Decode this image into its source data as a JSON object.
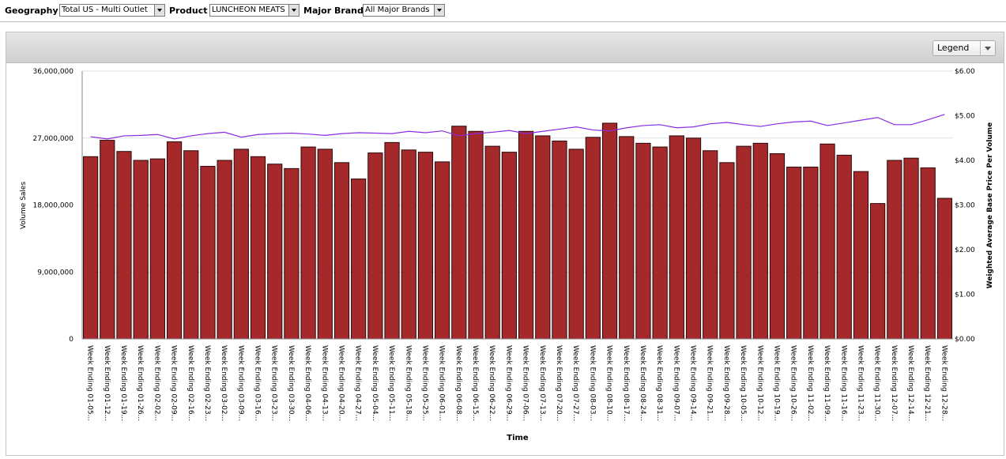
{
  "filters": {
    "geography_label": "Geography",
    "geography_value": "Total US - Multi Outlet",
    "product_label": "Product",
    "product_value": "LUNCHEON MEATS",
    "brand_label": "Major Brand",
    "brand_value": "All Major Brands"
  },
  "panel": {
    "legend_label": "Legend"
  },
  "colors": {
    "bar": "#a5292a",
    "bar_stroke": "#2a0a0a",
    "line": "#8a2be2",
    "grid": "#dde3ea"
  },
  "chart_data": {
    "type": "bar",
    "title": "",
    "xlabel": "Time",
    "ylabel": "Volume Sales",
    "y2label": "Weighted Average Base Price Per Volume",
    "ylim": [
      0,
      36000000
    ],
    "y2lim": [
      0,
      6
    ],
    "yticks": [
      "0",
      "9,000,000",
      "18,000,000",
      "27,000,000",
      "36,000,000"
    ],
    "y2ticks": [
      "$0.00",
      "$1.00",
      "$2.00",
      "$3.00",
      "$4.00",
      "$5.00",
      "$6.00"
    ],
    "grid": true,
    "legend": "collapsed",
    "categories": [
      "Week Ending 01-05...",
      "Week Ending 01-12...",
      "Week Ending 01-19...",
      "Week Ending 01-26...",
      "Week Ending 02-02...",
      "Week Ending 02-09...",
      "Week Ending 02-16...",
      "Week Ending 02-23...",
      "Week Ending 03-02...",
      "Week Ending 03-09...",
      "Week Ending 03-16...",
      "Week Ending 03-23...",
      "Week Ending 03-30...",
      "Week Ending 04-06...",
      "Week Ending 04-13...",
      "Week Ending 04-20...",
      "Week Ending 04-27...",
      "Week Ending 05-04...",
      "Week Ending 05-11...",
      "Week Ending 05-18...",
      "Week Ending 05-25...",
      "Week Ending 06-01...",
      "Week Ending 06-08...",
      "Week Ending 06-15...",
      "Week Ending 06-22...",
      "Week Ending 06-29...",
      "Week Ending 07-06...",
      "Week Ending 07-13...",
      "Week Ending 07-20...",
      "Week Ending 07-27...",
      "Week Ending 08-03...",
      "Week Ending 08-10...",
      "Week Ending 08-17...",
      "Week Ending 08-24...",
      "Week Ending 08-31...",
      "Week Ending 09-07...",
      "Week Ending 09-14...",
      "Week Ending 09-21...",
      "Week Ending 09-28...",
      "Week Ending 10-05...",
      "Week Ending 10-12...",
      "Week Ending 10-19...",
      "Week Ending 10-26...",
      "Week Ending 11-02...",
      "Week Ending 11-09...",
      "Week Ending 11-16...",
      "Week Ending 11-23...",
      "Week Ending 11-30...",
      "Week Ending 12-07...",
      "Week Ending 12-14...",
      "Week Ending 12-21...",
      "Week Ending 12-28..."
    ],
    "series": [
      {
        "axis": "left",
        "kind": "bar",
        "values": [
          24500000,
          26700000,
          25200000,
          24000000,
          24200000,
          26500000,
          25300000,
          23200000,
          24000000,
          25500000,
          24500000,
          23500000,
          22900000,
          25800000,
          25500000,
          23700000,
          21500000,
          25000000,
          26400000,
          25400000,
          25100000,
          23800000,
          28600000,
          27900000,
          25900000,
          25100000,
          27900000,
          27300000,
          26600000,
          25500000,
          27100000,
          29000000,
          27200000,
          26300000,
          25800000,
          27300000,
          27000000,
          25300000,
          23700000,
          25900000,
          26300000,
          24900000,
          23100000,
          23100000,
          26200000,
          24700000,
          22500000,
          18200000,
          24000000,
          24300000,
          23000000,
          18900000
        ]
      },
      {
        "axis": "right",
        "kind": "line",
        "values": [
          4.53,
          4.48,
          4.55,
          4.56,
          4.58,
          4.48,
          4.55,
          4.6,
          4.63,
          4.52,
          4.58,
          4.6,
          4.61,
          4.59,
          4.56,
          4.6,
          4.62,
          4.61,
          4.6,
          4.65,
          4.62,
          4.66,
          4.55,
          4.6,
          4.63,
          4.67,
          4.6,
          4.65,
          4.7,
          4.75,
          4.68,
          4.66,
          4.73,
          4.78,
          4.8,
          4.73,
          4.75,
          4.82,
          4.85,
          4.8,
          4.76,
          4.82,
          4.86,
          4.88,
          4.78,
          4.84,
          4.9,
          4.96,
          4.8,
          4.8,
          4.91,
          5.03
        ]
      }
    ]
  }
}
